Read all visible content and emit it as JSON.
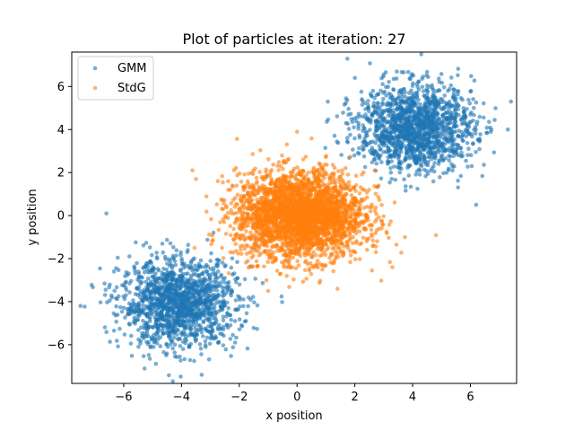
{
  "chart_data": {
    "type": "scatter",
    "title": "Plot of particles at iteration: 27",
    "xlabel": "x position",
    "ylabel": "y position",
    "xlim": [
      -7.8,
      7.6
    ],
    "ylim": [
      -7.8,
      7.6
    ],
    "xticks": [
      -6,
      -4,
      -2,
      0,
      2,
      4,
      6
    ],
    "yticks": [
      -6,
      -4,
      -2,
      0,
      2,
      4,
      6
    ],
    "grid": false,
    "legend_position": "top-left",
    "series": [
      {
        "name": "GMM",
        "color": "#1f77b4",
        "clusters": [
          {
            "center": [
              -4.1,
              -4.1
            ],
            "std": [
              1.0,
              1.0
            ],
            "count": 1500
          },
          {
            "center": [
              4.1,
              4.1
            ],
            "std": [
              1.0,
              1.0
            ],
            "count": 1500
          }
        ],
        "outliers": [
          [
            -6.6,
            0.1
          ],
          [
            -7.5,
            -4.2
          ],
          [
            -4.3,
            -7.7
          ],
          [
            4.3,
            7.5
          ],
          [
            7.3,
            4.0
          ],
          [
            6.2,
            0.5
          ],
          [
            -3.3,
            -7.4
          ]
        ]
      },
      {
        "name": "StdG",
        "color": "#ff7f0e",
        "clusters": [
          {
            "center": [
              0.1,
              0.0
            ],
            "std": [
              1.1,
              1.0
            ],
            "count": 3000
          }
        ],
        "outliers": [
          [
            0.0,
            3.9
          ],
          [
            -3.5,
            1.7
          ],
          [
            3.3,
            -2.4
          ],
          [
            -1.0,
            -3.5
          ],
          [
            1.4,
            -3.4
          ],
          [
            -2.6,
            -1.5
          ]
        ]
      }
    ]
  }
}
